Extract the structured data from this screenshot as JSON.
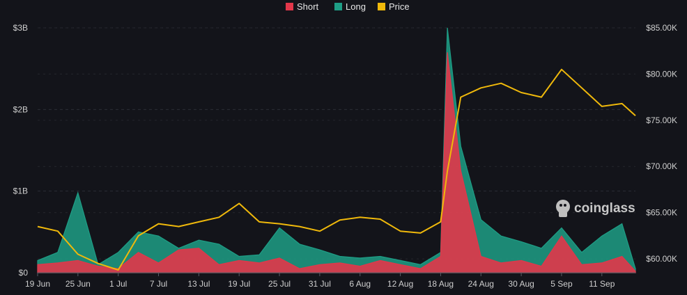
{
  "chart_data": {
    "type": "area",
    "x": [
      "19 Jun",
      "22 Jun",
      "25 Jun",
      "28 Jun",
      "1 Jul",
      "4 Jul",
      "7 Jul",
      "10 Jul",
      "13 Jul",
      "16 Jul",
      "19 Jul",
      "22 Jul",
      "25 Jul",
      "28 Jul",
      "31 Jul",
      "3 Aug",
      "6 Aug",
      "9 Aug",
      "12 Aug",
      "15 Aug",
      "18 Aug",
      "19 Aug",
      "21 Aug",
      "24 Aug",
      "27 Aug",
      "30 Aug",
      "2 Sep",
      "5 Sep",
      "8 Sep",
      "11 Sep",
      "14 Sep",
      "16 Sep"
    ],
    "x_ticks": [
      "19 Jun",
      "25 Jun",
      "1 Jul",
      "7 Jul",
      "13 Jul",
      "19 Jul",
      "25 Jul",
      "31 Jul",
      "6 Aug",
      "12 Aug",
      "18 Aug",
      "24 Aug",
      "30 Aug",
      "5 Sep",
      "11 Sep"
    ],
    "series": [
      {
        "name": "Short",
        "color": "#e2374a",
        "axis": "left",
        "values": [
          0.1,
          0.12,
          0.15,
          0.08,
          0.05,
          0.25,
          0.12,
          0.28,
          0.3,
          0.1,
          0.15,
          0.12,
          0.18,
          0.05,
          0.1,
          0.12,
          0.08,
          0.15,
          0.1,
          0.05,
          0.2,
          2.7,
          1.25,
          0.2,
          0.12,
          0.15,
          0.08,
          0.45,
          0.1,
          0.12,
          0.2,
          0.02
        ]
      },
      {
        "name": "Long",
        "color": "#1e9e86",
        "axis": "left",
        "values": [
          0.15,
          0.25,
          0.98,
          0.1,
          0.25,
          0.5,
          0.45,
          0.3,
          0.4,
          0.35,
          0.2,
          0.22,
          0.55,
          0.35,
          0.28,
          0.2,
          0.18,
          0.2,
          0.15,
          0.1,
          0.25,
          3.0,
          1.55,
          0.65,
          0.45,
          0.38,
          0.3,
          0.55,
          0.25,
          0.45,
          0.6,
          0.05
        ]
      },
      {
        "name": "Price",
        "color": "#f0b90b",
        "axis": "right",
        "values": [
          63500,
          63000,
          60500,
          59500,
          58800,
          62500,
          63800,
          63500,
          64000,
          64500,
          66000,
          64000,
          63800,
          63500,
          63000,
          64200,
          64500,
          64300,
          63000,
          62800,
          64000,
          69500,
          77500,
          78500,
          79000,
          78000,
          77500,
          80500,
          78500,
          76500,
          76800,
          75500
        ]
      }
    ],
    "ylabel_left": "",
    "ylabel_right": "",
    "ylim_left": [
      0,
      3
    ],
    "yticks_left": [
      "$0",
      "$1B",
      "$2B",
      "$3B"
    ],
    "ylim_right": [
      58500,
      85000
    ],
    "yticks_right": [
      "$60.00K",
      "$65.00K",
      "$70.00K",
      "$75.00K",
      "$80.00K",
      "$85.00K"
    ],
    "grid": true,
    "legend_position": "top-center",
    "watermark": "coinglass"
  }
}
